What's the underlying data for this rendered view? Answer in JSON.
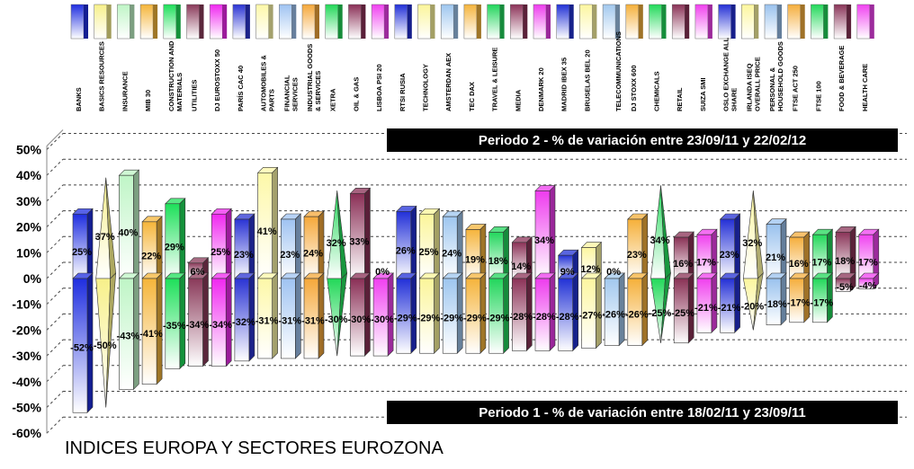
{
  "title": "INDICES EUROPA Y SECTORES EUROZONA",
  "periods": {
    "p2_label": "Periodo 2 -  % de variación entre  23/09/11  y  22/02/12",
    "p1_label": "Periodo 1 -  % de variación entre  18/02/11  y  23/09/11"
  },
  "chart_data": {
    "type": "bar",
    "title": "INDICES EUROPA Y SECTORES EUROZONA",
    "ylim": [
      -60,
      50
    ],
    "yticks": [
      50,
      40,
      30,
      20,
      10,
      0,
      -10,
      -20,
      -30,
      -40,
      -50,
      -60
    ],
    "grid": true,
    "categories": [
      "BANKS",
      "BASICS RESOURCES",
      "INSURANCE",
      "MIB 30",
      "CONSTRUCTION AND MATERIALS",
      "UTILITIES",
      "DJ EUROSTOXX 50",
      "PARÍS CAC 40",
      "AUTOMOBILES & PARTS",
      "FINANCIAL SERVICES",
      "INDUSTRIAL GOODS & SERVICES",
      "XETRA",
      "OIL & GAS",
      "LISBOA PSI 20",
      "RTSI RUSIA",
      "TECHNOLOGY",
      "AMSTERDAN AEX",
      "TEC DAX",
      "TRAVEL & LEISURE",
      "MEDIA",
      "DENMARK 20",
      "MADRID IBEX 35",
      "BRUSELAS BEL 20",
      "TELECOMMUNICATIONS",
      "DJ STOXX 600",
      "CHEMICALS",
      "RETAIL",
      "SUIZA SMI",
      "OSLO EXCHANGE ALL SHARE",
      "IRLANDA ISEQ OVERALL PRICE",
      "PERSONAL & HOUSEHOLD GOODS",
      "FTSE ACT 250",
      "FTSE 100",
      "FOOD & BEVERAGE",
      "HEALTH CARE"
    ],
    "series": [
      {
        "name": "Periodo 2 -  % de variación entre  23/09/11  y  22/02/12",
        "values": [
          25,
          37,
          40,
          22,
          29,
          6,
          25,
          23,
          41,
          23,
          24,
          32,
          33,
          0,
          26,
          25,
          24,
          19,
          18,
          14,
          34,
          9,
          12,
          0,
          23,
          34,
          16,
          17,
          23,
          32,
          21,
          16,
          17,
          18,
          17
        ],
        "labels": [
          "25%",
          "37%",
          "40%",
          "22%",
          "29%",
          "6%",
          "25%",
          "23%",
          "41%",
          "23%",
          "24%",
          "32%",
          "33%",
          "0%",
          "26%",
          "25%",
          "24%",
          "19%",
          "18%",
          "14%",
          "34%",
          "9%",
          "12%",
          "0%",
          "23%",
          "34%",
          "16%",
          "17%",
          "23%",
          "32%",
          "21%",
          "16%",
          "17%",
          "18%",
          "17%"
        ]
      },
      {
        "name": "Periodo 1 -  % de variación entre  18/02/11  y  23/09/11",
        "values": [
          -52,
          -50,
          -43,
          -41,
          -35,
          -34,
          -34,
          -32,
          -31,
          -31,
          -31,
          -30,
          -30,
          -30,
          -29,
          -29,
          -29,
          -29,
          -29,
          -28,
          -28,
          -28,
          -27,
          -26,
          -26,
          -25,
          -25,
          -21,
          -21,
          -20,
          -18,
          -17,
          -17,
          -5,
          -4
        ],
        "labels": [
          "-52%",
          "-50%",
          "-43%",
          "-41%",
          "-35%",
          "-34%",
          "-34%",
          "-32%",
          "-31%",
          "-31%",
          "-31%",
          "-30%",
          "-30%",
          "-30%",
          "-29%",
          "-29%",
          "-29%",
          "-29%",
          "-29%",
          "-28%",
          "-28%",
          "-28%",
          "-27%",
          "-26%",
          "-26%",
          "-25%",
          "-25%",
          "-21%",
          "-21%",
          "-20%",
          "-18%",
          "-17%",
          "-17%",
          "-5%",
          "-4%"
        ]
      }
    ],
    "colors": [
      "#1f2ee0",
      "#f7f08a",
      "#bff5c6",
      "#f5b53a",
      "#1ee05a",
      "#8a3a5a",
      "#f028f0",
      "#2b34d4",
      "#fdf8a8",
      "#9fc3f2",
      "#f5a83a",
      "#22d858",
      "#8a2f56",
      "#f040f0",
      "#2230d8",
      "#fbf59a",
      "#9ec6ef",
      "#f5b43c",
      "#22d65c",
      "#8c3358",
      "#ee3cee",
      "#2232d6",
      "#fcf6a0",
      "#a2c8ee",
      "#f5b03a",
      "#22da5a",
      "#8a3256",
      "#f040ee",
      "#2430d6",
      "#fcf69e",
      "#9ac2ee",
      "#f5ae3c",
      "#22d85a",
      "#8a3458",
      "#f042f0"
    ],
    "shapes": [
      "bar",
      "cone",
      "bar",
      "bar",
      "bar",
      "bar",
      "bar",
      "bar",
      "bar",
      "bar",
      "bar",
      "cone",
      "bar",
      "bar",
      "bar",
      "bar",
      "bar",
      "bar",
      "bar",
      "bar",
      "bar",
      "bar",
      "bar",
      "bar",
      "bar",
      "cone",
      "bar",
      "bar",
      "bar",
      "cone",
      "bar",
      "bar",
      "bar",
      "bar",
      "bar"
    ]
  }
}
